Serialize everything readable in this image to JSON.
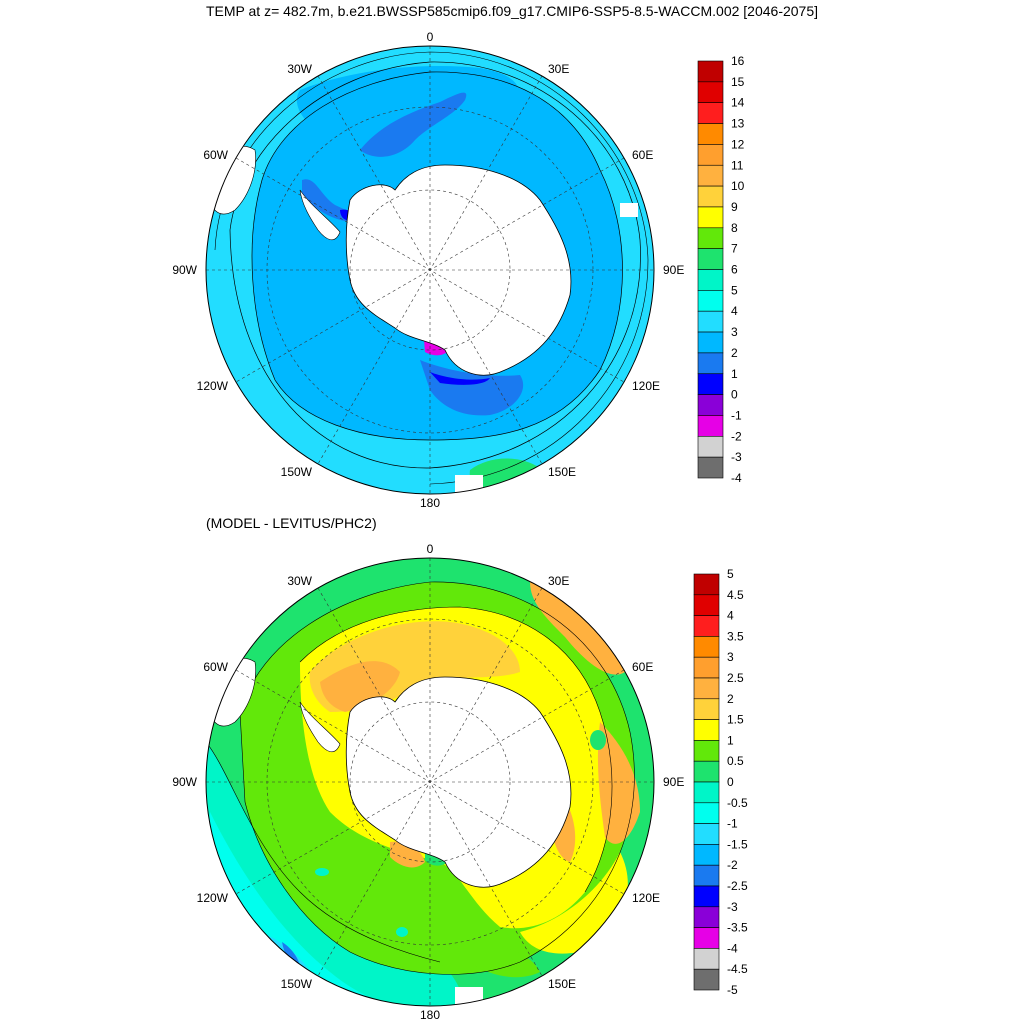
{
  "title": "TEMP at z= 482.7m, b.e21.BWSSP585cmip6.f09_g17.CMIP6-SSP5-8.5-WACCM.002 [2046-2075]",
  "subtitle": "(MODEL - LEVITUS/PHC2)",
  "longitude_labels": [
    "0",
    "30E",
    "60E",
    "90E",
    "120E",
    "150E",
    "180",
    "150W",
    "120W",
    "90W",
    "60W",
    "30W"
  ],
  "colorbar_top": {
    "labels": [
      "16",
      "15",
      "14",
      "13",
      "12",
      "11",
      "10",
      "9",
      "8",
      "7",
      "6",
      "5",
      "4",
      "3",
      "2",
      "1",
      "0",
      "-1",
      "-2",
      "-3",
      "-4"
    ],
    "colors": [
      "#c00000",
      "#e00000",
      "#ff1e1e",
      "#ff8a00",
      "#ff9f2e",
      "#ffb13f",
      "#ffd23a",
      "#ffff00",
      "#62e80a",
      "#1ee36e",
      "#00f5c8",
      "#00ffee",
      "#22ddff",
      "#00b8ff",
      "#1a7af0",
      "#0000ff",
      "#8a00d8",
      "#e600e6",
      "#d2d2d2",
      "#6e6e6e"
    ]
  },
  "colorbar_bottom": {
    "labels": [
      "5",
      "4.5",
      "4",
      "3.5",
      "3",
      "2.5",
      "2",
      "1.5",
      "1",
      "0.5",
      "0",
      "-0.5",
      "-1",
      "-1.5",
      "-2",
      "-2.5",
      "-3",
      "-3.5",
      "-4",
      "-4.5",
      "-5"
    ],
    "colors": [
      "#c00000",
      "#e00000",
      "#ff1e1e",
      "#ff8a00",
      "#ff9f2e",
      "#ffb13f",
      "#ffd23a",
      "#ffff00",
      "#62e80a",
      "#1ee36e",
      "#00f5c8",
      "#00ffee",
      "#22ddff",
      "#00b8ff",
      "#1a7af0",
      "#0000ff",
      "#8a00d8",
      "#e600e6",
      "#d2d2d2",
      "#6e6e6e"
    ]
  }
}
